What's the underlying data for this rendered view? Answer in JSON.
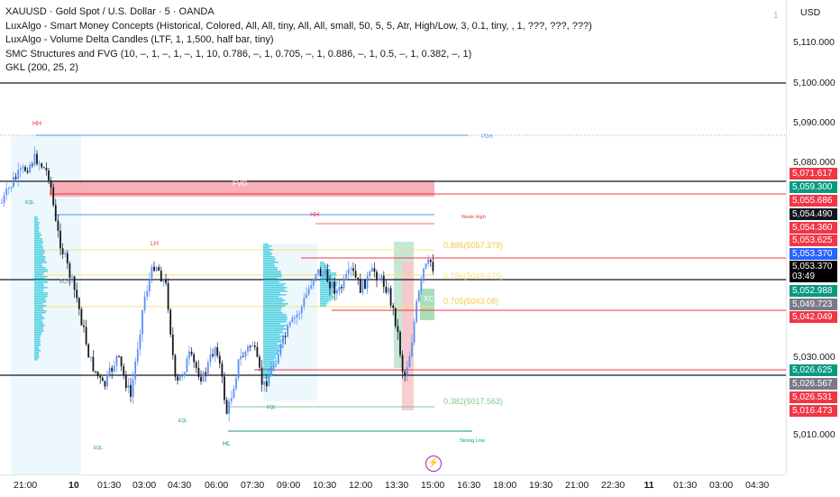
{
  "legend": {
    "title": "XAUUSD · Gold Spot / U.S. Dollar · 5 · OANDA",
    "ind1": "LuxAlgo - Smart Money Concepts (Historical, Colored, All, All, tiny, All, All, small, 50, 5, 5, Atr, High/Low, 3, 0.1, tiny, , 1, ???, ???, ???)",
    "ind2": "LuxAlgo - Volume Delta Candles (LTF, 1, 1,500, half bar, tiny)",
    "ind3": "SMC Structures and FVG (10, –, 1, –, 1, –, 1, 10, 0.786, –, 1, 0.705, –, 1, 0.886, –, 1, 0.5, –, 1, 0.382, –, 1)",
    "ind4": "GKL (200, 25, 2)"
  },
  "currency": "USD",
  "pane_number": "1",
  "price_ticks": [
    "5,110.000",
    "5,100.000",
    "5,090.000",
    "5,080.000",
    "5,030.000",
    "5,010.000"
  ],
  "price_tags": [
    {
      "text": "5,071.617",
      "color": "#f23645"
    },
    {
      "text": "5,059.300",
      "color": "#089981"
    },
    {
      "text": "5,055.686",
      "color": "#f23645"
    },
    {
      "text": "5,054.490",
      "color": "#131722"
    },
    {
      "text": "5,054.360",
      "color": "#f23645"
    },
    {
      "text": "5,053.625",
      "color": "#f23645"
    },
    {
      "text": "5,053.370",
      "color": "#2962ff"
    },
    {
      "text": "5,053.370",
      "color": "#000000"
    },
    {
      "text": "03:49",
      "color": "#000000"
    },
    {
      "text": "5,052.988",
      "color": "#089981"
    },
    {
      "text": "5,049.723",
      "color": "#787b86"
    },
    {
      "text": "5,042.049",
      "color": "#f23645"
    },
    {
      "text": "5,026.625",
      "color": "#089981"
    },
    {
      "text": "5,026.567",
      "color": "#787b86"
    },
    {
      "text": "5,026.531",
      "color": "#f23645"
    },
    {
      "text": "5,016.473",
      "color": "#f23645"
    }
  ],
  "time_ticks": [
    "21:00",
    "10",
    "01:30",
    "03:00",
    "04:30",
    "06:00",
    "07:30",
    "09:00",
    "10:30",
    "12:00",
    "13:30",
    "15:00",
    "16:30",
    "18:00",
    "19:30",
    "21:00",
    "22:30",
    "11",
    "01:30",
    "03:00",
    "04:30"
  ],
  "chart_labels": {
    "hh1": "HH",
    "hh2": "HH",
    "lh": "LH",
    "hl": "HL",
    "pdh": "PDH",
    "fvg": "FVG",
    "weak_high": "Weak High",
    "strong_low": "Strong Low",
    "eql1": "EQL",
    "eql2": "EQL",
    "eql3": "EQL",
    "eql4": "EQL",
    "fib886": "0.886(5057.379)",
    "fib786": "0.786(5049.675)",
    "fib705": "0.705(5043.08)",
    "fib382": "0.382(5017.563)",
    "bos": "BOS",
    "ob": "XC"
  },
  "colors": {
    "up": "#5b8ff9",
    "down": "#131722",
    "bear": "#f23645",
    "bull": "#089981",
    "fib": "#f7e27b"
  }
}
